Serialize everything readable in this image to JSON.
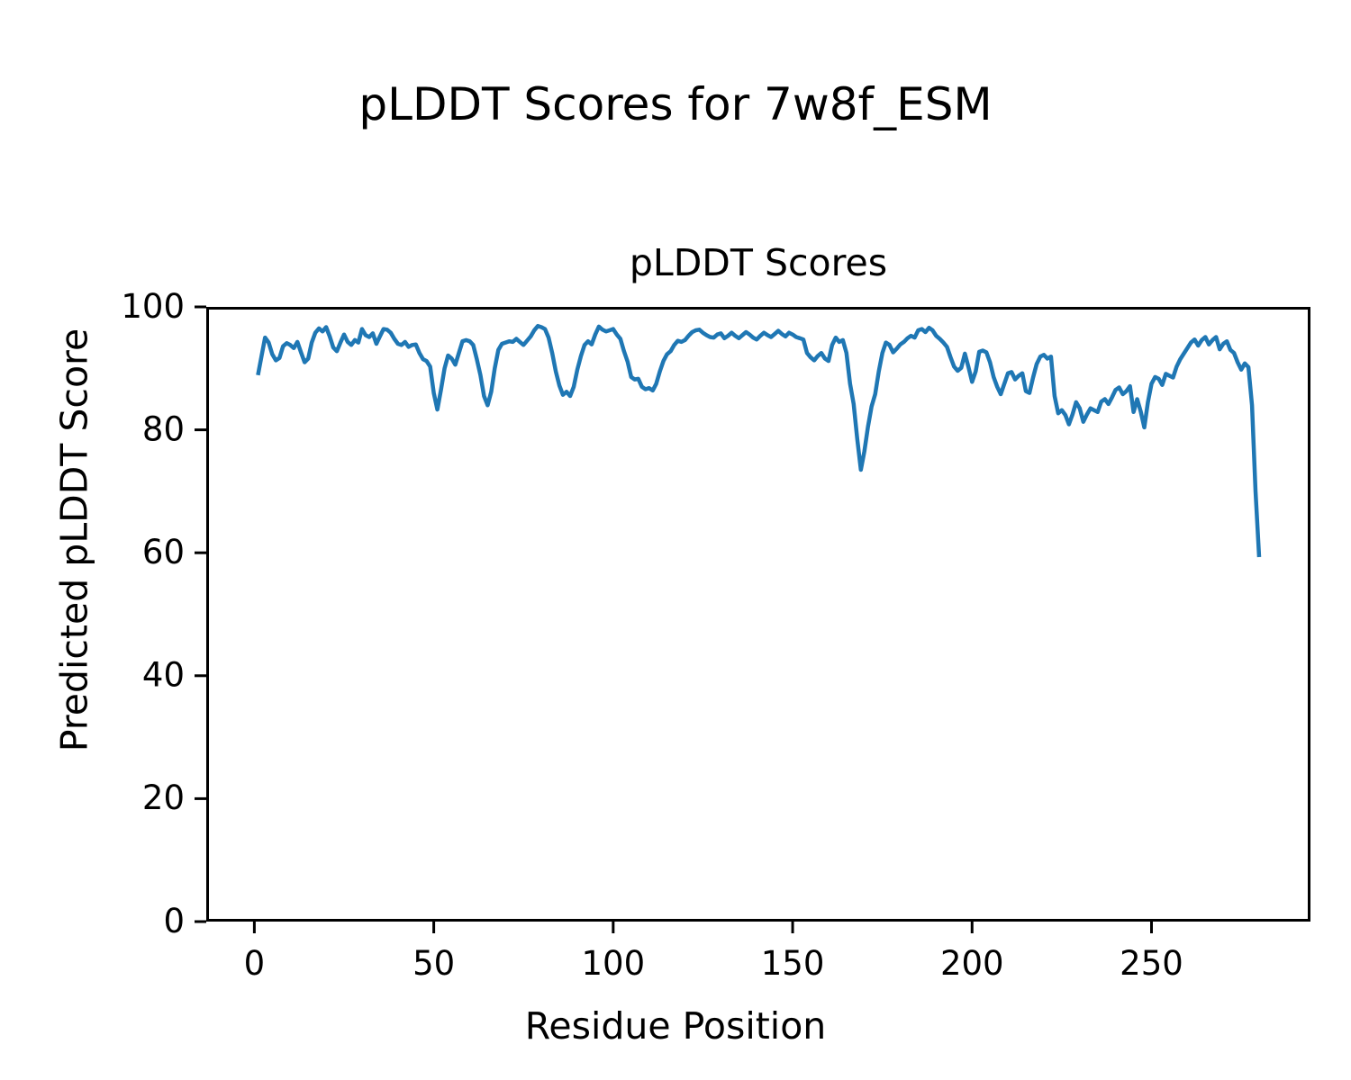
{
  "figure": {
    "suptitle": "pLDDT Scores for 7w8f_ESM",
    "axes_title": "pLDDT Scores",
    "xlabel": "Residue Position",
    "ylabel": "Predicted pLDDT Score"
  },
  "chart_data": {
    "type": "line",
    "title": "pLDDT Scores",
    "suptitle": "pLDDT Scores for 7w8f_ESM",
    "xlabel": "Residue Position",
    "ylabel": "Predicted pLDDT Score",
    "xlim": [
      -13.4,
      294.3
    ],
    "ylim": [
      0,
      100
    ],
    "xticks": [
      0,
      50,
      100,
      150,
      200,
      250
    ],
    "yticks": [
      0,
      20,
      40,
      60,
      80,
      100
    ],
    "grid": false,
    "legend": "none",
    "line_color": "#1f77b4",
    "spine_color": "#000000",
    "series": [
      {
        "name": "pLDDT",
        "x_start": 1,
        "x_step": 1,
        "y": [
          88.9,
          92.0,
          95.0,
          94.2,
          92.3,
          91.3,
          91.7,
          93.6,
          94.1,
          93.8,
          93.3,
          94.3,
          92.6,
          91.0,
          91.6,
          94.2,
          95.8,
          96.5,
          96.0,
          96.7,
          95.2,
          93.4,
          92.8,
          94.2,
          95.5,
          94.3,
          93.8,
          94.6,
          94.2,
          96.4,
          95.4,
          95.1,
          95.7,
          94.0,
          95.2,
          96.4,
          96.3,
          95.8,
          94.8,
          94.0,
          93.8,
          94.3,
          93.5,
          93.8,
          93.9,
          92.5,
          91.5,
          91.2,
          90.3,
          86.0,
          83.3,
          86.5,
          90.0,
          92.1,
          91.6,
          90.6,
          92.5,
          94.4,
          94.6,
          94.4,
          93.8,
          91.5,
          88.9,
          85.5,
          84.0,
          86.2,
          90.0,
          93.0,
          94.0,
          94.2,
          94.4,
          94.3,
          94.8,
          94.3,
          93.8,
          94.5,
          95.2,
          96.2,
          96.9,
          96.7,
          96.4,
          95.0,
          92.5,
          89.5,
          87.2,
          85.7,
          86.2,
          85.5,
          87.0,
          89.8,
          92.0,
          93.8,
          94.4,
          93.9,
          95.5,
          96.8,
          96.3,
          96.0,
          96.2,
          96.4,
          95.5,
          94.8,
          92.8,
          91.1,
          88.6,
          88.2,
          88.3,
          87.0,
          86.6,
          86.8,
          86.4,
          87.5,
          89.5,
          91.2,
          92.3,
          92.8,
          93.8,
          94.5,
          94.3,
          94.6,
          95.3,
          95.9,
          96.2,
          96.3,
          95.8,
          95.4,
          95.1,
          95.0,
          95.5,
          95.7,
          94.9,
          95.3,
          95.8,
          95.3,
          94.9,
          95.4,
          95.9,
          95.5,
          95.0,
          94.7,
          95.3,
          95.8,
          95.4,
          95.1,
          95.6,
          96.1,
          95.6,
          95.2,
          95.8,
          95.5,
          95.1,
          94.9,
          94.7,
          92.5,
          91.8,
          91.3,
          92.0,
          92.5,
          91.6,
          91.2,
          93.8,
          95.0,
          94.3,
          94.6,
          92.5,
          87.5,
          84.2,
          78.5,
          73.5,
          76.5,
          80.5,
          83.8,
          85.8,
          89.5,
          92.5,
          94.2,
          93.8,
          92.6,
          93.2,
          93.9,
          94.3,
          94.9,
          95.3,
          95.0,
          96.2,
          96.4,
          95.9,
          96.6,
          96.2,
          95.3,
          94.8,
          94.2,
          93.5,
          91.8,
          90.3,
          89.6,
          90.1,
          92.4,
          90.2,
          87.8,
          89.5,
          92.7,
          92.9,
          92.6,
          91.0,
          88.6,
          87.0,
          85.8,
          87.5,
          89.2,
          89.4,
          88.2,
          88.8,
          89.2,
          86.3,
          86.0,
          88.5,
          90.7,
          91.9,
          92.2,
          91.6,
          91.9,
          85.5,
          82.7,
          83.2,
          82.4,
          80.9,
          82.5,
          84.5,
          83.5,
          81.3,
          82.5,
          83.5,
          83.2,
          82.9,
          84.6,
          85.0,
          84.2,
          85.3,
          86.5,
          86.9,
          85.8,
          86.3,
          87.1,
          82.9,
          85.0,
          83.0,
          80.4,
          84.5,
          87.5,
          88.6,
          88.3,
          87.3,
          89.1,
          88.8,
          88.5,
          90.3,
          91.5,
          92.4,
          93.3,
          94.2,
          94.7,
          93.7,
          94.6,
          95.1,
          93.9,
          94.6,
          95.1,
          93.1,
          94.0,
          94.4,
          93.0,
          92.5,
          91.0,
          89.8,
          90.8,
          90.2,
          84.0,
          70.0,
          59.3
        ]
      }
    ]
  }
}
